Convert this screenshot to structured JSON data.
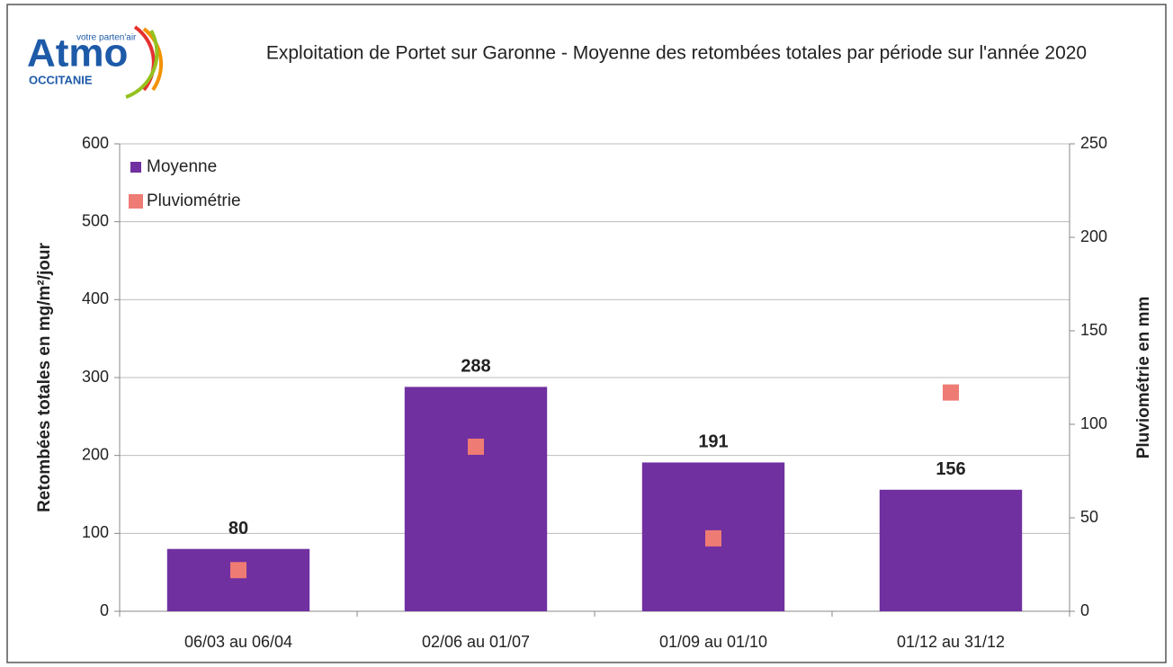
{
  "logo": {
    "name": "Atmo",
    "tagline": "votre parten'air",
    "region": "OCCITANIE"
  },
  "chart_data": {
    "type": "bar",
    "title": "Exploitation de Portet sur Garonne - Moyenne des retombées totales par période sur l'année 2020",
    "ylabel": "Retombées totales en mg/m²/jour",
    "y2label": "Pluviométrie en mm",
    "categories": [
      "06/03 au 06/04",
      "02/06 au 01/07",
      "01/09 au 01/10",
      "01/12 au 31/12"
    ],
    "series": [
      {
        "name": "Moyenne",
        "type": "bar",
        "color": "#7030a0",
        "values": [
          80,
          288,
          191,
          156
        ]
      },
      {
        "name": "Pluviométrie",
        "type": "scatter",
        "axis": "y2",
        "color": "#ee7b74",
        "values": [
          22,
          88,
          39,
          117
        ]
      }
    ],
    "ylim": [
      0,
      600
    ],
    "yticks": [
      0,
      100,
      200,
      300,
      400,
      500,
      600
    ],
    "y2lim": [
      0,
      250
    ],
    "y2ticks": [
      0,
      50,
      100,
      150,
      200,
      250
    ],
    "grid": true,
    "legend": "top-left"
  }
}
